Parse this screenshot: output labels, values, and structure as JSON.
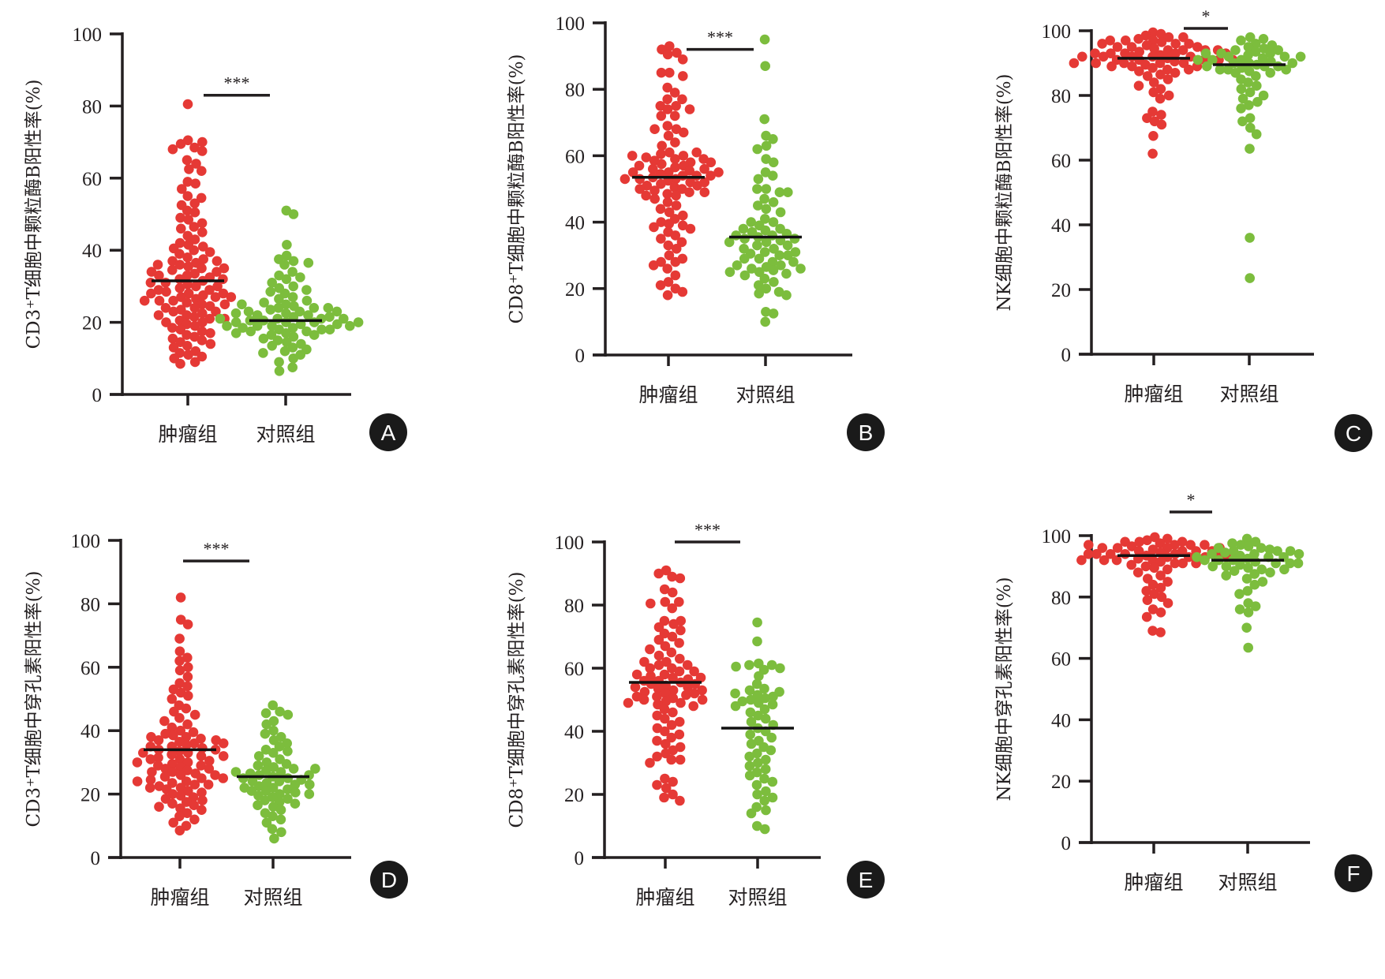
{
  "colors": {
    "tumor": "#e53935",
    "control": "#7cbd3d",
    "axis": "#231f20",
    "label_badge": "#1a1a1a"
  },
  "chart_data": [
    {
      "panel": "A",
      "type": "scatter",
      "ylabel": "CD3⁺T细胞中颗粒酶B阳性率(%)",
      "categories": [
        "肿瘤组",
        "对照组"
      ],
      "yticks": [
        "0",
        "20",
        "40",
        "60",
        "80",
        "100"
      ],
      "ylim": [
        0,
        100
      ],
      "significance": "***",
      "series": [
        {
          "name": "肿瘤组",
          "median": 31.5,
          "values": [
            80.5,
            70.5,
            70,
            69.5,
            68.5,
            68,
            67.5,
            65,
            64,
            62.5,
            62,
            59,
            58.5,
            57,
            55,
            54.5,
            53,
            52.5,
            51,
            50.5,
            49,
            48.5,
            47.5,
            46.5,
            46,
            45,
            44,
            43,
            42,
            41.5,
            41,
            40.5,
            40,
            39.5,
            39,
            38,
            37.5,
            37,
            36.5,
            36,
            35.5,
            35,
            34.5,
            34,
            33.5,
            33,
            32.5,
            32,
            31.5,
            31,
            30.5,
            30,
            29.5,
            29,
            28.5,
            28,
            27.5,
            27,
            26.5,
            26,
            25.5,
            25,
            24.5,
            24,
            23.5,
            23,
            22.5,
            22,
            21.5,
            21,
            20.5,
            20,
            19.5,
            19,
            18.5,
            18,
            17.5,
            17,
            16.5,
            16,
            15.5,
            15,
            14.5,
            14,
            13.5,
            13,
            12,
            11.5,
            11,
            10.5,
            10,
            9,
            8.5,
            30,
            29,
            28,
            27,
            26,
            25,
            24,
            23,
            22,
            21,
            20,
            33,
            32,
            31,
            34,
            35,
            36,
            37,
            28,
            27,
            26
          ]
        },
        {
          "name": "对照组",
          "median": 20.5,
          "values": [
            51,
            50,
            41.5,
            38.5,
            37.5,
            37,
            36.5,
            36,
            34,
            33,
            32.5,
            32,
            31,
            30,
            29.5,
            29,
            28.5,
            28,
            27,
            26.5,
            26,
            25.5,
            25,
            24.5,
            24,
            23.5,
            23,
            22.5,
            22,
            21.5,
            21,
            20.5,
            20,
            19.5,
            19,
            18.5,
            18,
            17.5,
            17,
            16.5,
            16,
            15.5,
            15,
            14.5,
            14,
            13.5,
            13,
            12.5,
            12,
            11.5,
            11,
            10,
            9,
            7.5,
            6.5,
            22,
            21,
            20,
            19,
            18,
            23,
            24,
            21.5,
            20.5,
            19.5,
            18.5,
            17.5,
            16.5,
            22.5,
            21,
            20,
            19,
            18,
            17,
            24,
            23,
            25,
            20,
            19,
            21
          ]
        }
      ]
    },
    {
      "panel": "B",
      "type": "scatter",
      "ylabel": "CD8⁺T细胞中颗粒酶B阳性率(%)",
      "categories": [
        "肿瘤组",
        "对照组"
      ],
      "yticks": [
        "0",
        "20",
        "40",
        "60",
        "80",
        "100"
      ],
      "ylim": [
        0,
        100
      ],
      "significance": "***",
      "series": [
        {
          "name": "肿瘤组",
          "median": 53.5,
          "values": [
            93,
            92,
            91,
            90.5,
            89,
            85,
            85,
            84,
            80.5,
            79,
            77,
            77,
            75,
            75,
            74,
            74,
            72,
            72,
            69,
            68,
            68,
            67,
            66,
            64,
            63,
            61,
            60.5,
            60,
            59.5,
            59,
            58.5,
            58,
            57.5,
            57,
            56.5,
            56,
            55.5,
            55,
            54.5,
            54,
            53.5,
            53,
            52.5,
            52,
            51.5,
            51,
            50.5,
            50,
            49.5,
            49,
            48.5,
            48,
            47,
            46,
            45,
            44,
            43,
            42,
            41,
            40,
            39.5,
            39,
            38.5,
            38,
            37,
            36,
            35,
            34,
            33,
            32,
            30,
            29,
            28,
            28,
            27,
            26,
            24,
            22,
            21,
            20,
            19,
            18,
            57,
            56,
            55,
            54,
            53,
            52,
            51,
            50,
            49,
            48,
            59,
            58,
            60,
            61,
            55,
            54,
            53
          ]
        },
        {
          "name": "对照组",
          "median": 35.5,
          "values": [
            95,
            87,
            71,
            66,
            65,
            63,
            62,
            59,
            58,
            55,
            54,
            53,
            50,
            50,
            49,
            49,
            47,
            46,
            45,
            44,
            43,
            41,
            40,
            40,
            39,
            38,
            38,
            37.5,
            37,
            36.5,
            36,
            35.5,
            35,
            34.5,
            34,
            33,
            32,
            31,
            30.5,
            30,
            29,
            28,
            27,
            26.5,
            26,
            25.5,
            25,
            24.5,
            24,
            23,
            22,
            21,
            20,
            19,
            18.5,
            18,
            13,
            12.5,
            10,
            36,
            35,
            34,
            33,
            32,
            31,
            30,
            29,
            28,
            27,
            26,
            25
          ]
        }
      ]
    },
    {
      "panel": "C",
      "type": "scatter",
      "ylabel": "NK细胞中颗粒酶B阳性率(%)",
      "categories": [
        "肿瘤组",
        "对照组"
      ],
      "yticks": [
        "0",
        "20",
        "40",
        "60",
        "80",
        "100"
      ],
      "ylim": [
        0,
        100
      ],
      "significance": "*",
      "series": [
        {
          "name": "肿瘤组",
          "median": 91.5,
          "values": [
            99.5,
            99,
            98.5,
            98,
            97.5,
            97,
            96.5,
            96,
            95.5,
            95,
            94.5,
            94,
            93.5,
            93,
            92.5,
            92,
            91.5,
            91,
            90.5,
            90,
            89.5,
            89,
            88.5,
            88,
            87.5,
            87,
            86.5,
            86,
            85,
            84,
            83,
            82,
            81,
            80,
            79,
            75,
            74,
            73,
            72,
            71,
            67.5,
            62,
            98,
            97,
            96,
            95,
            94,
            93,
            92,
            91,
            90,
            89,
            88,
            95,
            94,
            93,
            92,
            91,
            90,
            96,
            97,
            93,
            92,
            91,
            90,
            89,
            94,
            93,
            92,
            91,
            90
          ]
        },
        {
          "name": "对照组",
          "median": 89.5,
          "values": [
            98,
            97.5,
            97,
            96,
            95.5,
            95,
            94.5,
            94,
            93.5,
            93,
            92.5,
            92,
            91.5,
            91,
            90.5,
            90,
            89.5,
            89,
            88.5,
            88,
            87.5,
            87,
            86,
            85,
            84,
            83,
            82,
            81,
            80,
            79,
            78,
            77,
            76,
            73,
            72,
            70,
            68,
            63.5,
            36,
            23.5,
            94,
            93,
            92,
            91,
            90,
            89,
            88,
            87,
            93,
            92,
            91,
            90,
            89,
            88
          ]
        }
      ]
    },
    {
      "panel": "D",
      "type": "scatter",
      "ylabel": "CD3⁺T细胞中穿孔素阳性率(%)",
      "categories": [
        "肿瘤组",
        "对照组"
      ],
      "yticks": [
        "0",
        "20",
        "40",
        "60",
        "80",
        "100"
      ],
      "ylim": [
        0,
        100
      ],
      "significance": "***",
      "series": [
        {
          "name": "肿瘤组",
          "median": 34,
          "values": [
            82,
            75,
            73.5,
            69,
            65,
            63,
            62,
            60,
            59,
            57,
            55,
            54,
            53,
            52,
            51,
            50,
            48,
            47,
            46,
            45,
            44,
            43,
            42,
            41,
            40,
            39.5,
            39,
            38.5,
            38,
            37.5,
            37,
            36.5,
            36,
            35.5,
            35,
            34.5,
            34,
            33.5,
            33,
            32.5,
            32,
            31.5,
            31,
            30.5,
            30,
            29.5,
            29,
            28.5,
            28,
            27.5,
            27,
            26.5,
            26,
            25.5,
            25,
            24.5,
            24,
            23.5,
            23,
            22.5,
            22,
            21.5,
            21,
            20.5,
            20,
            19.5,
            19,
            18.5,
            18,
            17.5,
            17,
            16.5,
            16,
            15.5,
            15,
            14,
            13,
            12,
            11,
            10,
            8.5,
            35,
            34,
            33,
            32,
            31,
            36,
            37,
            38,
            30,
            29,
            28,
            27,
            26,
            25,
            24,
            23,
            22
          ]
        },
        {
          "name": "对照组",
          "median": 25.5,
          "values": [
            48,
            46,
            45.5,
            45,
            43,
            42,
            40,
            39,
            38,
            37,
            36,
            35,
            34,
            33.5,
            33,
            32,
            31,
            30,
            29.5,
            29,
            28.5,
            28,
            27.5,
            27,
            26.5,
            26,
            25.5,
            25,
            24.5,
            24,
            23.5,
            23,
            22.5,
            22,
            21.5,
            21,
            20.5,
            20,
            19.5,
            19,
            18.5,
            18,
            17.5,
            17,
            16.5,
            16,
            15,
            14,
            13,
            12,
            11,
            9,
            8,
            6,
            26,
            25,
            24,
            27,
            28,
            23,
            22,
            21,
            20
          ]
        }
      ]
    },
    {
      "panel": "E",
      "type": "scatter",
      "ylabel": "CD8⁺T细胞中穿孔素阳性率(%)",
      "categories": [
        "肿瘤组",
        "对照组"
      ],
      "yticks": [
        "0",
        "20",
        "40",
        "60",
        "80",
        "100"
      ],
      "ylim": [
        0,
        100
      ],
      "significance": "***",
      "series": [
        {
          "name": "肿瘤组",
          "median": 55.5,
          "values": [
            91,
            90,
            89,
            88.5,
            85,
            84,
            81,
            81,
            80.5,
            79,
            75,
            75,
            74,
            73,
            72,
            71,
            70,
            69,
            68,
            67,
            66,
            65,
            64,
            63,
            62,
            61,
            60,
            59,
            58,
            57.5,
            57,
            56.5,
            56,
            55.5,
            55,
            54.5,
            54,
            53.5,
            53,
            52.5,
            52,
            51.5,
            51,
            50.5,
            50,
            49.5,
            49,
            48.5,
            48,
            47,
            46,
            45,
            44,
            43,
            42,
            41,
            40,
            39,
            38,
            37,
            36,
            35,
            34,
            33,
            32,
            31,
            31,
            30,
            25,
            24,
            23,
            22,
            20,
            19,
            18,
            58,
            57,
            56,
            55,
            54,
            53,
            52,
            51,
            50,
            49,
            60,
            61,
            62,
            59
          ]
        },
        {
          "name": "对照组",
          "median": 41,
          "values": [
            74.5,
            68.5,
            61.5,
            61,
            61,
            60.5,
            60,
            59.5,
            57.5,
            55,
            53.5,
            53,
            52.5,
            52,
            51.5,
            51,
            50.5,
            50,
            49.5,
            49,
            48.5,
            48,
            47,
            46,
            45,
            44,
            43,
            42,
            41,
            40,
            39,
            38,
            37,
            36,
            35,
            34,
            33,
            32,
            31,
            30,
            29,
            28,
            27,
            26,
            25,
            24,
            23,
            21,
            20,
            19,
            18,
            16,
            15,
            14,
            10,
            9
          ]
        }
      ]
    },
    {
      "panel": "F",
      "type": "scatter",
      "ylabel": "NK细胞中穿孔素阳性率(%)",
      "categories": [
        "肿瘤组",
        "对照组"
      ],
      "yticks": [
        "0",
        "20",
        "40",
        "60",
        "80",
        "100"
      ],
      "ylim": [
        0,
        100
      ],
      "significance": "*",
      "series": [
        {
          "name": "肿瘤组",
          "median": 93.5,
          "values": [
            99.5,
            99,
            98.5,
            98,
            97.5,
            97,
            96.5,
            96,
            95.5,
            95,
            94.5,
            94,
            93.5,
            93,
            92.5,
            92,
            91.5,
            91,
            90.5,
            90,
            89.5,
            89,
            88,
            87,
            86,
            85,
            84,
            83,
            82,
            81,
            80,
            79,
            78,
            76,
            75,
            73.5,
            69,
            68.5,
            98,
            97,
            96,
            95,
            94,
            93,
            92,
            91,
            97,
            96,
            95,
            94,
            93,
            92,
            95,
            94,
            93,
            96,
            97,
            98,
            94,
            93,
            92,
            91
          ]
        },
        {
          "name": "对照组",
          "median": 92,
          "values": [
            99,
            98,
            97.5,
            97,
            96.5,
            96,
            95.5,
            95,
            94.5,
            94,
            93.5,
            93,
            92.5,
            92,
            91.5,
            91,
            90.5,
            90,
            89.5,
            89,
            88.5,
            88,
            87.5,
            87,
            86,
            85,
            84,
            82,
            81,
            78,
            77,
            76,
            75,
            70,
            63.5,
            95,
            94,
            93,
            92,
            91,
            90,
            89,
            96,
            95,
            94,
            93,
            92,
            91
          ]
        }
      ]
    }
  ],
  "panels": [
    {
      "letter": "A"
    },
    {
      "letter": "B"
    },
    {
      "letter": "C"
    },
    {
      "letter": "D"
    },
    {
      "letter": "E"
    },
    {
      "letter": "F"
    }
  ]
}
